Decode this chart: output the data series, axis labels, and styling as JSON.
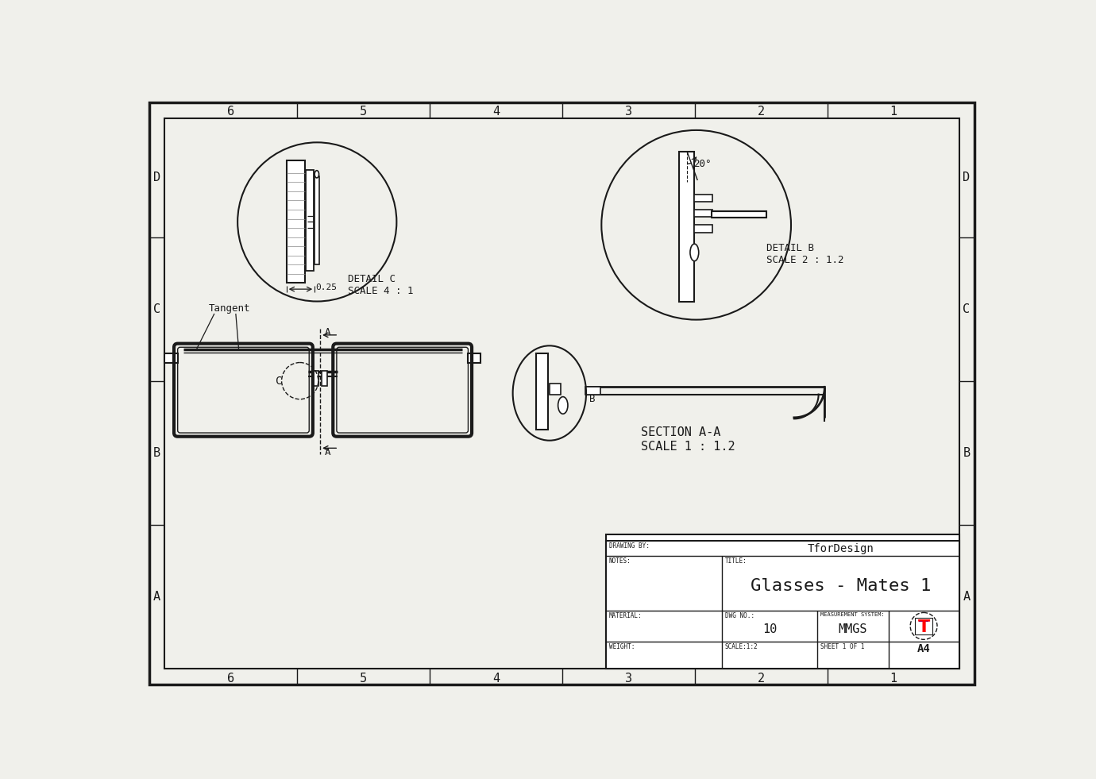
{
  "bg_color": "#f0f0eb",
  "line_color": "#1a1a1a",
  "title": "Glasses - Mates 1",
  "drawing_by": "TforDesign",
  "dwg_no": "10",
  "measurement_system": "MMGS",
  "sheet_size": "A4",
  "col_labels": [
    "6",
    "5",
    "4",
    "3",
    "2",
    "1"
  ],
  "row_labels": [
    "D",
    "C",
    "B",
    "A"
  ],
  "detail_c_label": "DETAIL C\nSCALE 4 : 1",
  "detail_b_label": "DETAIL B\nSCALE 2 : 1.2",
  "section_label": "SECTION A-A\nSCALE 1 : 1.2",
  "dim_025": "0.25",
  "angle_20": "20°",
  "tangent_label": "Tangent",
  "notes_label": "NOTES:",
  "title_label": "TITLE:",
  "material_label": "MATERIAL:",
  "dwgno_label": "DWG NO.:",
  "meas_label": "MEASUREMENT SYSTEM:",
  "weight_label": "WEIGHT:",
  "scale_label": "SCALE:1:2",
  "sheet_label": "SHEET 1 OF 1",
  "drawing_by_label": "DRAWING BY:"
}
